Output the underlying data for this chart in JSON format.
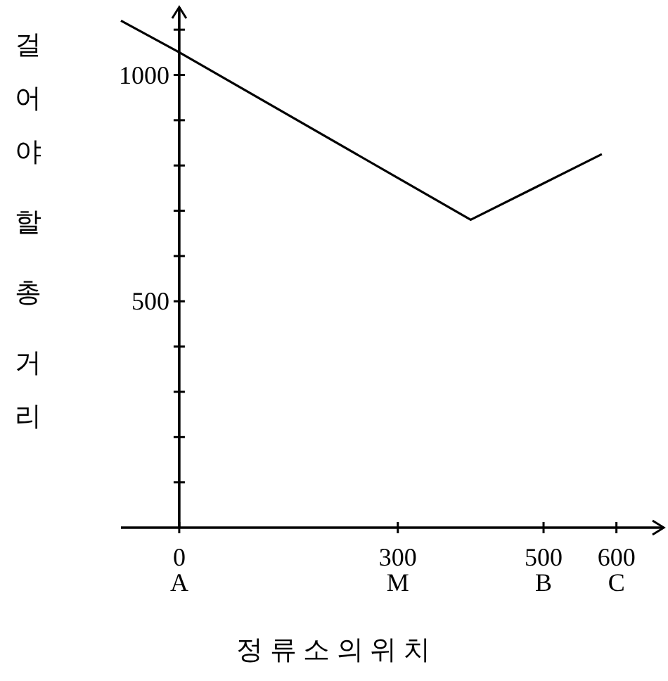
{
  "chart_data": {
    "type": "line",
    "xlabel": "정 류 소 의 위 치",
    "ylabel": "걸어야 할 총 거리",
    "x": [
      -80,
      0,
      400,
      580
    ],
    "series": [
      {
        "color": "#000000",
        "values": [
          1120,
          1050,
          680,
          825
        ]
      }
    ],
    "xlim": [
      -80,
      665
    ],
    "ylim": [
      0,
      1150
    ],
    "xticks": [
      {
        "value": 0,
        "label": "0\nA"
      },
      {
        "value": 300,
        "label": "300\nM"
      },
      {
        "value": 500,
        "label": "500\nB"
      },
      {
        "value": 600,
        "label": "600\nC"
      }
    ],
    "yticks": [
      {
        "value": 100,
        "label": null
      },
      {
        "value": 200,
        "label": null
      },
      {
        "value": 300,
        "label": null
      },
      {
        "value": 400,
        "label": null
      },
      500,
      {
        "value": 600,
        "label": null
      },
      {
        "value": 700,
        "label": null
      },
      {
        "value": 800,
        "label": null
      },
      {
        "value": 900,
        "label": null
      },
      1000,
      {
        "value": 1100,
        "label": null
      }
    ],
    "grid": false,
    "marker": "none",
    "line_style": "solid"
  }
}
